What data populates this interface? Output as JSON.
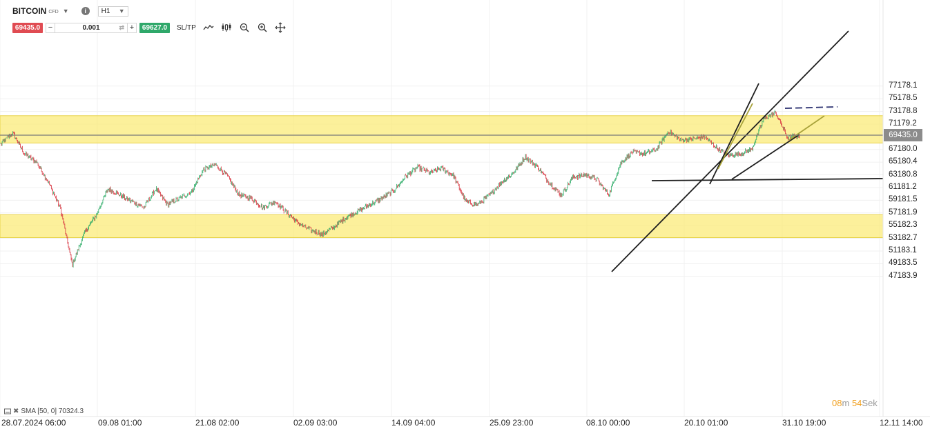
{
  "instrument": {
    "symbol": "BITCOIN",
    "type": "CFD",
    "timeframe": "H1"
  },
  "trade_panel": {
    "sell_price": "69435.0",
    "buy_price": "69627.0",
    "volume": "0.001",
    "minus": "−",
    "plus": "+",
    "sltp": "SL/TP"
  },
  "toolbar_icons": [
    "chart-type-icon",
    "indicators-icon",
    "zoom-out-icon",
    "zoom-in-icon",
    "crosshair-icon"
  ],
  "current_price": "69435.0",
  "colors": {
    "up": "#2bab66",
    "down": "#d8343f",
    "zone": "#fbeb7a",
    "zone_border": "#e8d34a",
    "price_line": "#7a7a7a",
    "trendline": "#1e1e1e",
    "olive_line": "#a8a23a",
    "dashed": "#3a3f7a"
  },
  "countdown": {
    "min": "08",
    "min_unit": "m",
    "sec": "54",
    "sec_unit": "Sek"
  },
  "indicator_legend": "SMA [50, 0] 70324.3",
  "chart_data": {
    "type": "candlestick",
    "y_axis": {
      "min": 47183.9,
      "max": 78000,
      "ticks": [
        "77178.1",
        "75178.5",
        "73178.8",
        "71179.2",
        "69435.0",
        "67180.0",
        "65180.4",
        "63180.8",
        "61181.2",
        "59181.5",
        "57181.9",
        "55182.3",
        "53182.7",
        "51183.1",
        "49183.5",
        "47183.9"
      ]
    },
    "x_axis": {
      "ticks": [
        "28.07.2024 06:00",
        "09.08 01:00",
        "21.08 02:00",
        "02.09 03:00",
        "14.09 04:00",
        "25.09 23:00",
        "08.10 00:00",
        "20.10 01:00",
        "31.10 19:00",
        "12.11 14:00"
      ]
    },
    "zones": [
      {
        "from": 68200,
        "to": 72500
      },
      {
        "from": 53300,
        "to": 56900
      }
    ],
    "path": [
      68000,
      69800,
      66500,
      65200,
      62000,
      58000,
      49000,
      54000,
      56800,
      61000,
      60000,
      59000,
      58000,
      61000,
      58500,
      59500,
      60500,
      64000,
      64800,
      63000,
      60000,
      59500,
      58000,
      59000,
      57200,
      55500,
      54500,
      53800,
      55000,
      56500,
      57500,
      58500,
      59500,
      60800,
      63000,
      64400,
      63500,
      64200,
      63000,
      59000,
      58500,
      60000,
      62000,
      63500,
      66000,
      64500,
      62000,
      60000,
      62800,
      63200,
      62500,
      60000,
      65000,
      66800,
      66500,
      67200,
      70000,
      68700,
      68800,
      69200,
      67500,
      66200,
      66500,
      67200,
      72000,
      73000,
      69000,
      69400
    ]
  }
}
